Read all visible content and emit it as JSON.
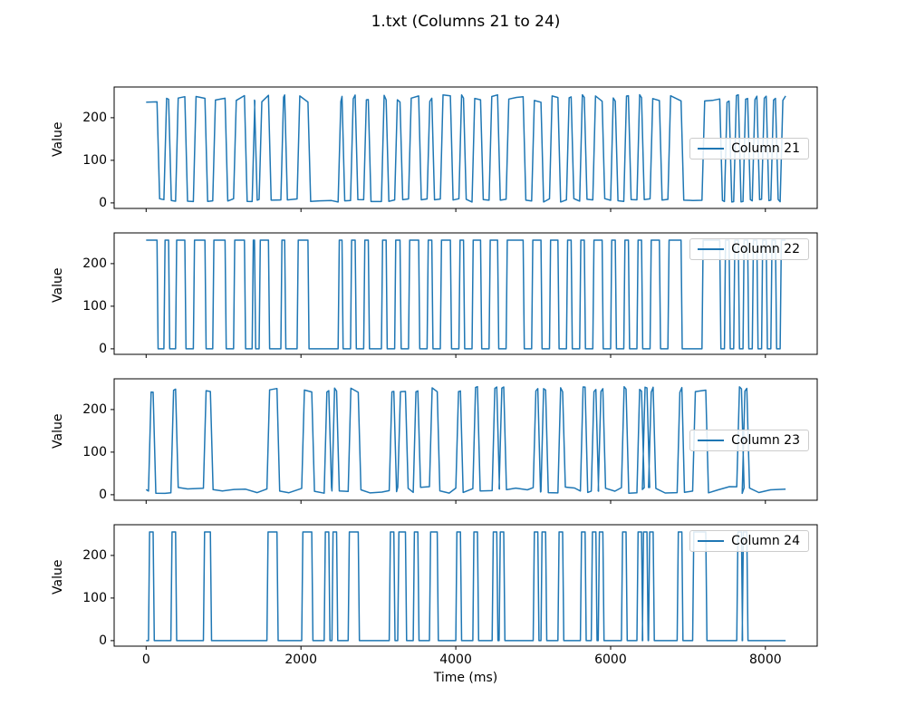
{
  "chart_data": {
    "type": "line",
    "title": "1.txt (Columns 21 to 24)",
    "xlabel": "Time (ms)",
    "ylabel": "Value",
    "x_ticks": [
      0,
      2000,
      4000,
      6000,
      8000
    ],
    "y_ticks": [
      0,
      100,
      200
    ],
    "xlim": [
      -413,
      8669
    ],
    "ylim": [
      -13,
      272
    ],
    "t_end": 8260,
    "line_color": "#1f77b4",
    "axis_color": "#000000",
    "legend_border_color": "#cccccc",
    "grid": false,
    "subplots": [
      {
        "label": "Column 21",
        "legend_loc": "center right",
        "style": "analog",
        "high": 245,
        "low": 6,
        "high_jitter": 9,
        "low_jitter": 4,
        "rise_ms": 35,
        "wiggle": true,
        "seed": 7,
        "high_segments": [
          [
            0,
            140
          ],
          [
            230,
            290
          ],
          [
            380,
            500
          ],
          [
            610,
            760
          ],
          [
            860,
            1020
          ],
          [
            1130,
            1270
          ],
          [
            1370,
            1400
          ],
          [
            1460,
            1580
          ],
          [
            1740,
            1790
          ],
          [
            1950,
            2090
          ],
          [
            2480,
            2530
          ],
          [
            2640,
            2700
          ],
          [
            2810,
            2870
          ],
          [
            3040,
            3100
          ],
          [
            3210,
            3280
          ],
          [
            3390,
            3520
          ],
          [
            3630,
            3690
          ],
          [
            3800,
            3930
          ],
          [
            4040,
            4100
          ],
          [
            4210,
            4320
          ],
          [
            4430,
            4540
          ],
          [
            4650,
            4870
          ],
          [
            4980,
            5100
          ],
          [
            5210,
            5320
          ],
          [
            5430,
            5490
          ],
          [
            5600,
            5660
          ],
          [
            5770,
            5890
          ],
          [
            6000,
            6060
          ],
          [
            6170,
            6230
          ],
          [
            6340,
            6400
          ],
          [
            6510,
            6630
          ],
          [
            6740,
            6910
          ],
          [
            7180,
            7410
          ],
          [
            7470,
            7530
          ],
          [
            7590,
            7650
          ],
          [
            7710,
            7770
          ],
          [
            7830,
            7890
          ],
          [
            7950,
            8010
          ],
          [
            8070,
            8130
          ],
          [
            8190,
            8260
          ]
        ]
      },
      {
        "label": "Column 22",
        "legend_loc": "upper right",
        "style": "digital",
        "high": 255,
        "low": 0,
        "high_jitter": 0,
        "low_jitter": 0,
        "rise_ms": 15,
        "wiggle": false,
        "seed": 1,
        "high_segments": [
          [
            0,
            140
          ],
          [
            230,
            290
          ],
          [
            380,
            500
          ],
          [
            610,
            760
          ],
          [
            860,
            1020
          ],
          [
            1130,
            1270
          ],
          [
            1370,
            1400
          ],
          [
            1460,
            1580
          ],
          [
            1740,
            1790
          ],
          [
            1950,
            2090
          ],
          [
            2480,
            2530
          ],
          [
            2640,
            2700
          ],
          [
            2810,
            2870
          ],
          [
            3040,
            3100
          ],
          [
            3210,
            3280
          ],
          [
            3390,
            3520
          ],
          [
            3630,
            3690
          ],
          [
            3800,
            3930
          ],
          [
            4040,
            4100
          ],
          [
            4210,
            4320
          ],
          [
            4430,
            4540
          ],
          [
            4650,
            4870
          ],
          [
            4980,
            5100
          ],
          [
            5210,
            5320
          ],
          [
            5430,
            5490
          ],
          [
            5600,
            5660
          ],
          [
            5770,
            5890
          ],
          [
            6000,
            6060
          ],
          [
            6170,
            6230
          ],
          [
            6340,
            6400
          ],
          [
            6510,
            6630
          ],
          [
            6740,
            6910
          ],
          [
            7180,
            7410
          ],
          [
            7470,
            7530
          ],
          [
            7590,
            7650
          ],
          [
            7710,
            7770
          ],
          [
            7830,
            7890
          ],
          [
            7950,
            8010
          ],
          [
            8070,
            8130
          ],
          [
            8190,
            8260
          ]
        ]
      },
      {
        "label": "Column 23",
        "legend_loc": "center right",
        "style": "analog",
        "high": 247,
        "low": 11,
        "high_jitter": 7,
        "low_jitter": 8,
        "rise_ms": 35,
        "wiggle": true,
        "seed": 13,
        "high_segments": [
          [
            30,
            90
          ],
          [
            320,
            380
          ],
          [
            740,
            830
          ],
          [
            1560,
            1690
          ],
          [
            2010,
            2140
          ],
          [
            2300,
            2360
          ],
          [
            2400,
            2460
          ],
          [
            2610,
            2740
          ],
          [
            3140,
            3200
          ],
          [
            3250,
            3350
          ],
          [
            3450,
            3510
          ],
          [
            3660,
            3760
          ],
          [
            4000,
            4060
          ],
          [
            4220,
            4280
          ],
          [
            4470,
            4530
          ],
          [
            4560,
            4620
          ],
          [
            5000,
            5060
          ],
          [
            5100,
            5160
          ],
          [
            5320,
            5380
          ],
          [
            5610,
            5670
          ],
          [
            5750,
            5810
          ],
          [
            5840,
            5900
          ],
          [
            6140,
            6200
          ],
          [
            6340,
            6400
          ],
          [
            6410,
            6470
          ],
          [
            6490,
            6550
          ],
          [
            6860,
            6920
          ],
          [
            7060,
            7230
          ],
          [
            7630,
            7690
          ],
          [
            7700,
            7760
          ]
        ]
      },
      {
        "label": "Column 24",
        "legend_loc": "upper right",
        "style": "digital",
        "high": 255,
        "low": 0,
        "high_jitter": 0,
        "low_jitter": 0,
        "rise_ms": 15,
        "wiggle": false,
        "seed": 2,
        "high_segments": [
          [
            30,
            90
          ],
          [
            320,
            380
          ],
          [
            740,
            830
          ],
          [
            1560,
            1690
          ],
          [
            2010,
            2140
          ],
          [
            2300,
            2360
          ],
          [
            2400,
            2460
          ],
          [
            2610,
            2740
          ],
          [
            3140,
            3200
          ],
          [
            3250,
            3350
          ],
          [
            3450,
            3510
          ],
          [
            3660,
            3760
          ],
          [
            4000,
            4060
          ],
          [
            4220,
            4280
          ],
          [
            4470,
            4530
          ],
          [
            4560,
            4620
          ],
          [
            5000,
            5060
          ],
          [
            5100,
            5160
          ],
          [
            5320,
            5380
          ],
          [
            5610,
            5670
          ],
          [
            5750,
            5810
          ],
          [
            5840,
            5900
          ],
          [
            6140,
            6200
          ],
          [
            6340,
            6400
          ],
          [
            6410,
            6470
          ],
          [
            6490,
            6550
          ],
          [
            6860,
            6920
          ],
          [
            7060,
            7230
          ],
          [
            7630,
            7690
          ],
          [
            7700,
            7760
          ]
        ]
      }
    ]
  }
}
